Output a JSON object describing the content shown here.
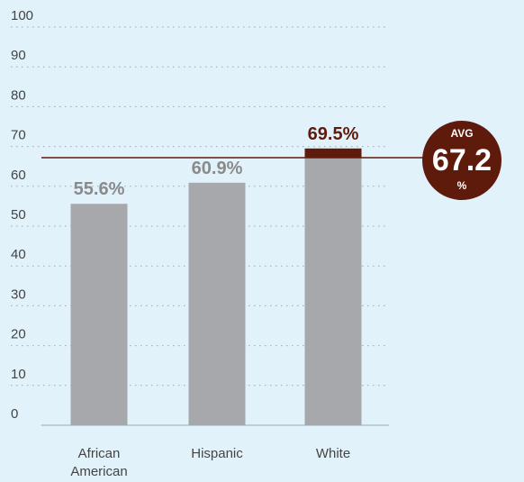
{
  "chart_data": {
    "type": "bar",
    "categories": [
      "African\nAmerican",
      "Hispanic",
      "White"
    ],
    "values": [
      55.6,
      60.9,
      69.5
    ],
    "value_labels": [
      "55.6%",
      "60.9%",
      "69.5%"
    ],
    "highlight_index": 2,
    "yticks": [
      0,
      10,
      20,
      30,
      40,
      50,
      60,
      70,
      80,
      90,
      100
    ],
    "ylim": [
      0,
      100
    ],
    "grid": true,
    "reference_line": {
      "value": 67.2,
      "label_top": "AVG",
      "label_value": "67.2",
      "label_unit": "%"
    },
    "colors": {
      "bar": "#a7a8ab",
      "highlight": "#5e1a0b",
      "grid": "#9aa9b3",
      "background": "#e1f2fb",
      "text": "#444444"
    }
  }
}
